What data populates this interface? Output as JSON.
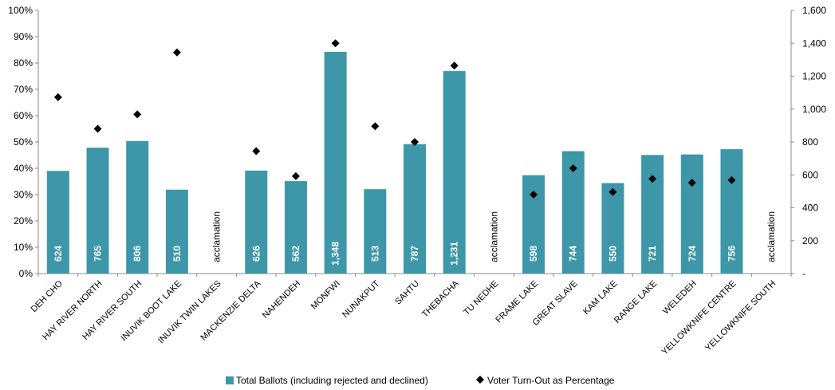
{
  "chart_data": {
    "type": "bar",
    "categories": [
      "DEH CHO",
      "HAY RIVER NORTH",
      "HAY RIVER SOUTH",
      "INUVIK BOOT LAKE",
      "INUVIK TWIN LAKES",
      "MACKENZIE DELTA",
      "NAHENDEH",
      "MONFWI",
      "NUNAKPUT",
      "SAHTU",
      "THEBACHA",
      "TU NEDHE",
      "FRAME LAKE",
      "GREAT SLAVE",
      "KAM LAKE",
      "RANGE LAKE",
      "WELEDEH",
      "YELLOWKNIFE CENTRE",
      "YELLOWKNIFE SOUTH"
    ],
    "series": [
      {
        "name": "Total Ballots (including rejected and declined)",
        "type": "bar",
        "axis": "right",
        "color": "#3d97a9",
        "values": [
          624,
          765,
          806,
          510,
          null,
          626,
          562,
          1348,
          513,
          787,
          1231,
          null,
          598,
          744,
          550,
          721,
          724,
          756,
          null
        ],
        "labels": [
          "624",
          "765",
          "806",
          "510",
          "acclamation",
          "626",
          "562",
          "1,348",
          "513",
          "787",
          "1,231",
          "acclamation",
          "598",
          "744",
          "550",
          "721",
          "724",
          "756",
          "acclamation"
        ]
      },
      {
        "name": "Voter Turn-Out as Percentage",
        "type": "scatter",
        "axis": "left",
        "marker": "diamond",
        "color": "#000000",
        "values": [
          67,
          55,
          60.5,
          84,
          null,
          46.5,
          37,
          87.5,
          56,
          50,
          79,
          null,
          30,
          40,
          31,
          36,
          34.5,
          35.5,
          null
        ]
      }
    ],
    "y_left": {
      "min": 0,
      "max": 100,
      "step": 10,
      "tick_labels": [
        "0%",
        "10%",
        "20%",
        "30%",
        "40%",
        "50%",
        "60%",
        "70%",
        "80%",
        "90%",
        "100%"
      ]
    },
    "y_right": {
      "min": 0,
      "max": 1600,
      "step": 200,
      "tick_labels": [
        "-",
        "200",
        "400",
        "600",
        "800",
        "1,000",
        "1,200",
        "1,400",
        "1,600"
      ]
    },
    "legend_position": "bottom",
    "grid": false
  }
}
